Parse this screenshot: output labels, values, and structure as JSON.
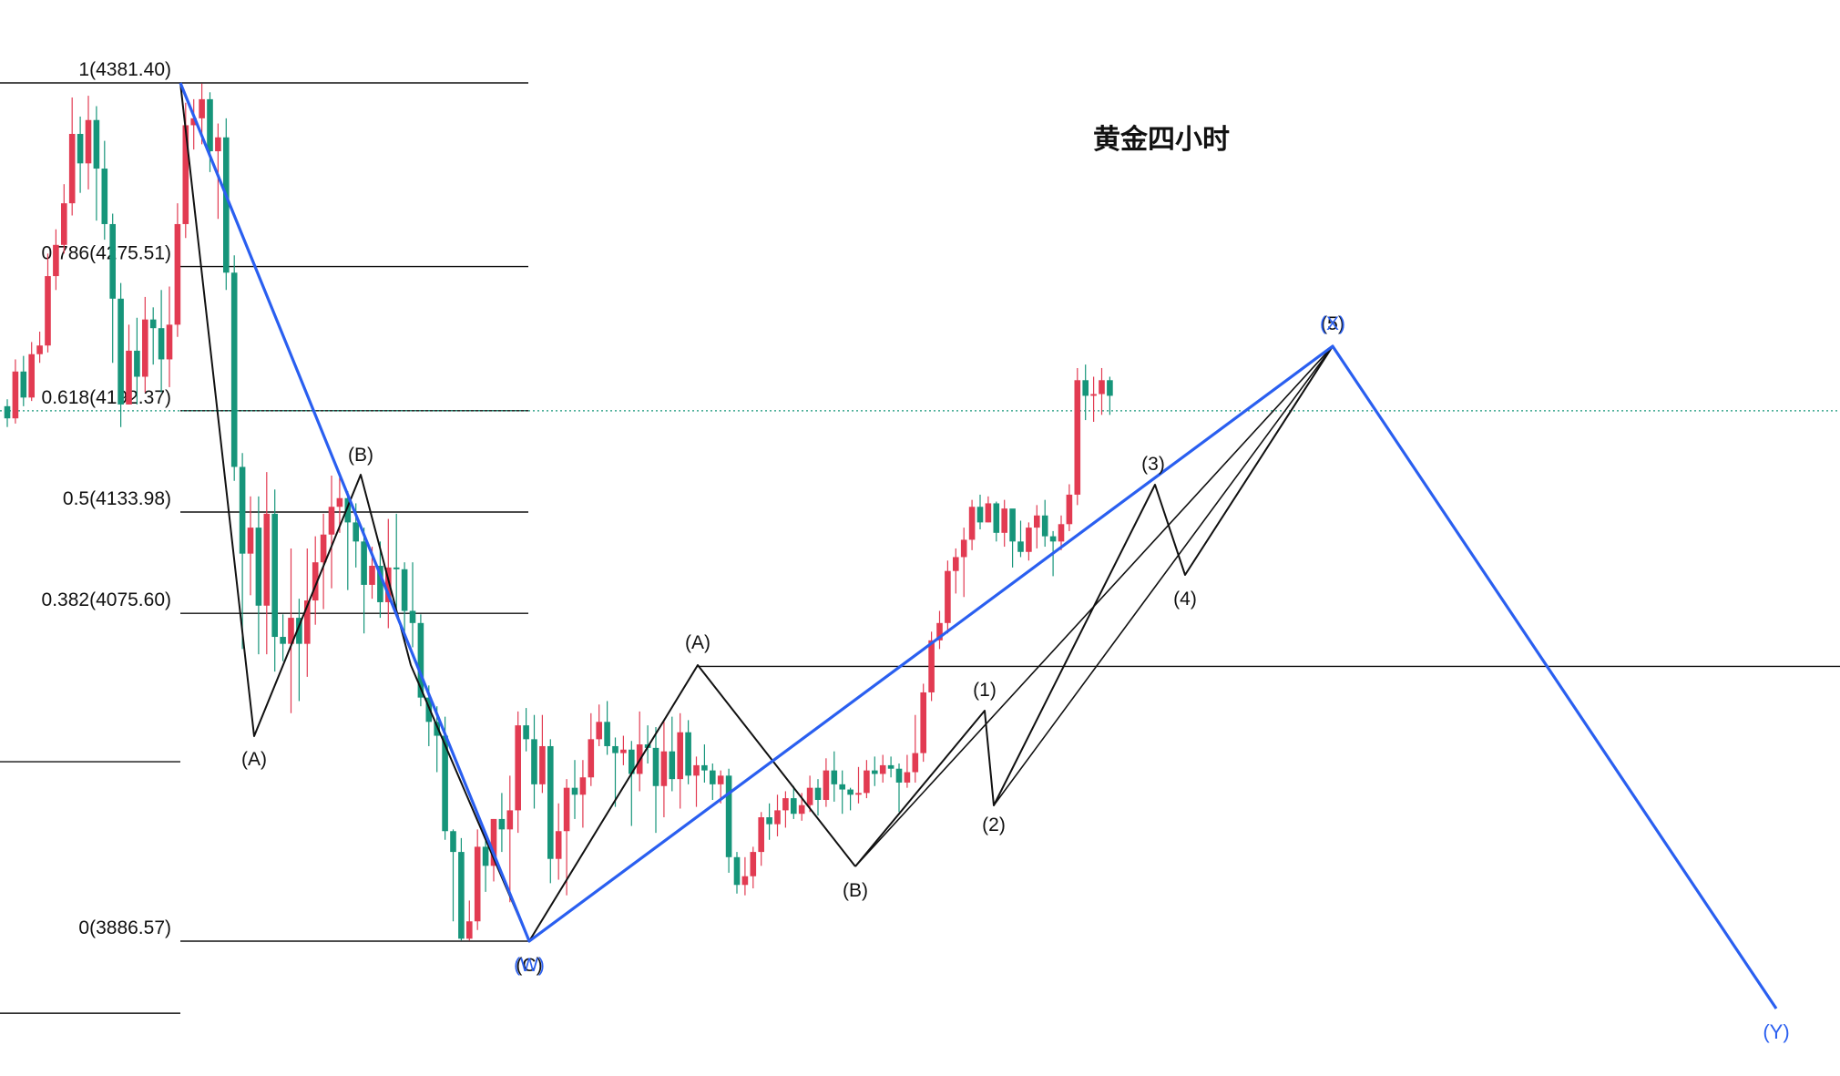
{
  "chart_data": {
    "type": "candlestick",
    "title": "黄金四小时",
    "instrument_note": "",
    "colors": {
      "up": "#e23b52",
      "down": "#16957a",
      "impulse_line": "#2a5ff0",
      "wave_line": "#111111",
      "fib_line": "#111111",
      "price_line": "#16957a",
      "y_label": "#2a5ff0"
    },
    "y_axis_scale": "linear",
    "price_line": 4192.37,
    "fibonacci_levels": [
      {
        "ratio": "1",
        "price": 4381.4,
        "label": "1(4381.40)"
      },
      {
        "ratio": "0.786",
        "price": 4275.51,
        "label": "0.786(4275.51)"
      },
      {
        "ratio": "0.618",
        "price": 4192.37,
        "label": "0.618(4192.37)"
      },
      {
        "ratio": "0.5",
        "price": 4133.98,
        "label": "0.5(4133.98)"
      },
      {
        "ratio": "0.382",
        "price": 4075.6,
        "label": "0.382(4075.60)"
      },
      {
        "ratio": "0",
        "price": 3886.57,
        "label": "0(3886.57)"
      }
    ],
    "horizontal_lines": [
      4045.0,
      3990.0,
      3845.0
    ],
    "candles": [
      [
        4195,
        4188,
        4199,
        4183
      ],
      [
        4188,
        4215,
        4222,
        4185
      ],
      [
        4215,
        4200,
        4224,
        4195
      ],
      [
        4200,
        4225,
        4232,
        4198
      ],
      [
        4225,
        4230,
        4238,
        4220
      ],
      [
        4230,
        4270,
        4283,
        4226
      ],
      [
        4270,
        4288,
        4297,
        4262
      ],
      [
        4288,
        4312,
        4323,
        4283
      ],
      [
        4312,
        4352,
        4373,
        4305
      ],
      [
        4352,
        4335,
        4362,
        4318
      ],
      [
        4335,
        4360,
        4374,
        4320
      ],
      [
        4360,
        4332,
        4368,
        4302
      ],
      [
        4332,
        4300,
        4348,
        4291
      ],
      [
        4300,
        4257,
        4306,
        4220
      ],
      [
        4257,
        4196,
        4266,
        4183
      ],
      [
        4196,
        4227,
        4242,
        4196
      ],
      [
        4227,
        4212,
        4246,
        4196
      ],
      [
        4212,
        4245,
        4258,
        4203
      ],
      [
        4245,
        4240,
        4252,
        4219
      ],
      [
        4240,
        4222,
        4262,
        4203
      ],
      [
        4222,
        4242,
        4264,
        4206
      ],
      [
        4242,
        4300,
        4312,
        4235
      ],
      [
        4300,
        4357,
        4370,
        4292
      ],
      [
        4357,
        4361,
        4372,
        4343
      ],
      [
        4361,
        4372,
        4381,
        4346
      ],
      [
        4372,
        4342,
        4376,
        4330
      ],
      [
        4342,
        4350,
        4358,
        4303
      ],
      [
        4350,
        4272,
        4361,
        4262
      ],
      [
        4272,
        4160,
        4282,
        4152
      ],
      [
        4160,
        4110,
        4168,
        4055
      ],
      [
        4110,
        4125,
        4143,
        4086
      ],
      [
        4125,
        4080,
        4143,
        4052
      ],
      [
        4080,
        4133,
        4157,
        4052
      ],
      [
        4133,
        4062,
        4147,
        4042
      ],
      [
        4062,
        4058,
        4075,
        4048
      ],
      [
        4058,
        4073,
        4113,
        4018
      ],
      [
        4073,
        4058,
        4084,
        4025
      ],
      [
        4058,
        4083,
        4113,
        4039
      ],
      [
        4083,
        4105,
        4120,
        4069
      ],
      [
        4105,
        4121,
        4133,
        4078
      ],
      [
        4121,
        4137,
        4155,
        4090
      ],
      [
        4137,
        4142,
        4154,
        4122
      ],
      [
        4142,
        4128,
        4146,
        4089
      ],
      [
        4128,
        4117,
        4139,
        4102
      ],
      [
        4117,
        4092,
        4125,
        4064
      ],
      [
        4092,
        4103,
        4114,
        4084
      ],
      [
        4103,
        4082,
        4117,
        4073
      ],
      [
        4082,
        4102,
        4130,
        4067
      ],
      [
        4102,
        4101,
        4133,
        4077
      ],
      [
        4101,
        4077,
        4105,
        4060
      ],
      [
        4077,
        4070,
        4105,
        4056
      ],
      [
        4070,
        4027,
        4075,
        4022
      ],
      [
        4027,
        4013,
        4034,
        3999
      ],
      [
        4013,
        4005,
        4022,
        3984
      ],
      [
        4005,
        3950,
        4016,
        3945
      ],
      [
        3950,
        3938,
        3951,
        3898
      ],
      [
        3938,
        3888,
        3946,
        3887
      ],
      [
        3888,
        3898,
        3910,
        3887
      ],
      [
        3898,
        3941,
        3951,
        3893
      ],
      [
        3941,
        3930,
        3945,
        3915
      ],
      [
        3930,
        3957,
        3957,
        3921
      ],
      [
        3957,
        3951,
        3972,
        3938
      ],
      [
        3951,
        3962,
        3982,
        3909
      ],
      [
        3962,
        4011,
        4019,
        3949
      ],
      [
        4011,
        4003,
        4021,
        3996
      ],
      [
        4003,
        3977,
        4017,
        3963
      ],
      [
        3977,
        3999,
        4017,
        3972
      ],
      [
        3999,
        3934,
        4003,
        3920
      ],
      [
        3934,
        3950,
        3966,
        3922
      ],
      [
        3950,
        3975,
        3980,
        3913
      ],
      [
        3975,
        3971,
        3991,
        3957
      ],
      [
        3971,
        3981,
        3991,
        3952
      ],
      [
        3981,
        4003,
        4018,
        3976
      ],
      [
        4003,
        4013,
        4023,
        3999
      ],
      [
        4013,
        3999,
        4025,
        3994
      ],
      [
        3999,
        3995,
        4004,
        3964
      ],
      [
        3995,
        3997,
        4005,
        3988
      ],
      [
        3997,
        3983,
        4002,
        3953
      ],
      [
        3983,
        4000,
        4019,
        3973
      ],
      [
        4000,
        3998,
        4011,
        3989
      ],
      [
        3998,
        3976,
        4010,
        3949
      ],
      [
        3976,
        3996,
        4014,
        3958
      ],
      [
        3996,
        3980,
        4016,
        3973
      ],
      [
        3980,
        4007,
        4018,
        3963
      ],
      [
        4007,
        3982,
        4014,
        3977
      ],
      [
        3982,
        3988,
        3993,
        3964
      ],
      [
        3988,
        3985,
        4000,
        3978
      ],
      [
        3985,
        3977,
        3989,
        3968
      ],
      [
        3977,
        3982,
        3985,
        3966
      ],
      [
        3982,
        3935,
        3986,
        3926
      ],
      [
        3935,
        3919,
        3938,
        3914
      ],
      [
        3919,
        3924,
        3935,
        3913
      ],
      [
        3924,
        3938,
        3941,
        3917
      ],
      [
        3938,
        3958,
        3961,
        3930
      ],
      [
        3958,
        3954,
        3966,
        3945
      ],
      [
        3954,
        3962,
        3971,
        3947
      ],
      [
        3962,
        3969,
        3973,
        3952
      ],
      [
        3969,
        3960,
        3976,
        3957
      ],
      [
        3960,
        3965,
        3972,
        3956
      ],
      [
        3965,
        3975,
        3982,
        3961
      ],
      [
        3975,
        3968,
        3980,
        3959
      ],
      [
        3968,
        3985,
        3992,
        3964
      ],
      [
        3985,
        3977,
        3996,
        3967
      ],
      [
        3977,
        3974,
        3985,
        3960
      ],
      [
        3974,
        3971,
        3975,
        3962
      ],
      [
        3971,
        3972,
        3987,
        3966
      ],
      [
        3972,
        3985,
        3991,
        3969
      ],
      [
        3985,
        3983,
        3993,
        3976
      ],
      [
        3983,
        3988,
        3994,
        3978
      ],
      [
        3988,
        3986,
        3993,
        3981
      ],
      [
        3986,
        3978,
        3989,
        3961
      ],
      [
        3978,
        3984,
        3994,
        3975
      ],
      [
        3984,
        3995,
        4017,
        3978
      ],
      [
        3995,
        4030,
        4035,
        3990
      ],
      [
        4030,
        4060,
        4065,
        4025
      ],
      [
        4060,
        4070,
        4077,
        4055
      ],
      [
        4070,
        4100,
        4106,
        4064
      ],
      [
        4100,
        4108,
        4113,
        4087
      ],
      [
        4108,
        4118,
        4125,
        4085
      ],
      [
        4118,
        4137,
        4141,
        4112
      ],
      [
        4137,
        4128,
        4144,
        4124
      ],
      [
        4128,
        4139,
        4143,
        4128
      ],
      [
        4139,
        4122,
        4140,
        4117
      ],
      [
        4122,
        4136,
        4141,
        4114
      ],
      [
        4136,
        4117,
        4133,
        4102
      ],
      [
        4117,
        4111,
        4129,
        4108
      ],
      [
        4111,
        4125,
        4128,
        4106
      ],
      [
        4125,
        4132,
        4138,
        4113
      ],
      [
        4132,
        4120,
        4141,
        4114
      ],
      [
        4120,
        4117,
        4123,
        4097
      ],
      [
        4117,
        4127,
        4132,
        4112
      ],
      [
        4127,
        4144,
        4150,
        4123
      ],
      [
        4144,
        4210,
        4217,
        4138
      ],
      [
        4210,
        4201,
        4219,
        4187
      ],
      [
        4201,
        4202,
        4212,
        4186
      ],
      [
        4202,
        4210,
        4217,
        4190
      ],
      [
        4210,
        4201,
        4212,
        4190
      ]
    ]
  },
  "wave_labels": {
    "top_a": "(A)",
    "top_b": "(B)",
    "low_c": "(C)",
    "low_w": "(W)",
    "mid_a": "(A)",
    "mid_b": "(B)",
    "w1": "(1)",
    "w2": "(2)",
    "w3": "(3)",
    "w4": "(4)",
    "w5": "(5)",
    "top_x": "(X)",
    "final_y": "(Y)"
  }
}
